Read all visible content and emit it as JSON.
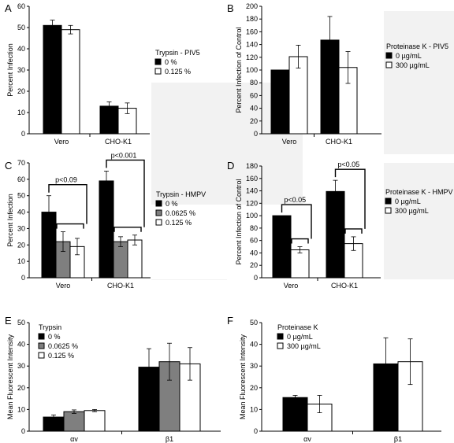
{
  "colors": {
    "black": "#000000",
    "gray": "#7f7f7f",
    "white": "#ffffff",
    "shade": "#f2f2f2"
  },
  "chart_data": [
    {
      "panel": "A",
      "type": "bar",
      "categories": [
        "Vero",
        "CHO-K1"
      ],
      "ylabel": "Percent Infection",
      "ylim": [
        0,
        60
      ],
      "yticks": [
        0,
        10,
        20,
        30,
        40,
        50,
        60
      ],
      "legend_title": "Trypsin - PIV5",
      "series": [
        {
          "name": "0 %",
          "values": [
            51,
            13
          ],
          "errors": [
            2.5,
            2
          ],
          "color": "black"
        },
        {
          "name": "0.125 %",
          "values": [
            49,
            12
          ],
          "errors": [
            2,
            2.5
          ],
          "color": "white"
        }
      ],
      "brackets": []
    },
    {
      "panel": "B",
      "type": "bar",
      "categories": [
        "Vero",
        "CHO-K1"
      ],
      "ylabel": "Percent Infection of Control",
      "ylim": [
        0,
        200
      ],
      "yticks": [
        0,
        20,
        40,
        60,
        80,
        100,
        120,
        140,
        160,
        180,
        200
      ],
      "legend_title": "Proteinase K - PIV5",
      "series": [
        {
          "name": "0 µg/mL",
          "values": [
            100,
            147
          ],
          "errors": [
            0,
            37
          ],
          "color": "black"
        },
        {
          "name": "300 µg/mL",
          "values": [
            121,
            104
          ],
          "errors": [
            18,
            25
          ],
          "color": "white"
        }
      ],
      "brackets": []
    },
    {
      "panel": "C",
      "type": "bar",
      "categories": [
        "Vero",
        "CHO-K1"
      ],
      "ylabel": "Percent Infection",
      "ylim": [
        0,
        70
      ],
      "yticks": [
        0,
        10,
        20,
        30,
        40,
        50,
        60,
        70
      ],
      "legend_title": "Trypsin - HMPV",
      "series": [
        {
          "name": "0 %",
          "values": [
            40,
            59
          ],
          "errors": [
            10,
            6
          ],
          "color": "black"
        },
        {
          "name": "0.0625 %",
          "values": [
            22,
            22
          ],
          "errors": [
            6,
            3
          ],
          "color": "gray"
        },
        {
          "name": "0.125 %",
          "values": [
            19,
            23
          ],
          "errors": [
            5,
            3
          ],
          "color": "white"
        }
      ],
      "brackets": [
        {
          "label": "p<0.09",
          "category": 0
        },
        {
          "label": "p<0.001",
          "category": 1
        }
      ]
    },
    {
      "panel": "D",
      "type": "bar",
      "categories": [
        "Vero",
        "CHO-K1"
      ],
      "ylabel": "Percent Infection of Control",
      "ylim": [
        0,
        180
      ],
      "yticks": [
        0,
        20,
        40,
        60,
        80,
        100,
        120,
        140,
        160,
        180
      ],
      "legend_title": "Proteinase K - HMPV",
      "series": [
        {
          "name": "0 µg/mL",
          "values": [
            100,
            139
          ],
          "errors": [
            0,
            18
          ],
          "color": "black"
        },
        {
          "name": "300 µg/mL",
          "values": [
            45,
            55
          ],
          "errors": [
            5,
            11
          ],
          "color": "white"
        }
      ],
      "brackets": [
        {
          "label": "p<0.05",
          "category": 0
        },
        {
          "label": "p<0.05",
          "category": 1
        }
      ]
    },
    {
      "panel": "E",
      "type": "bar",
      "categories": [
        "αv",
        "β1"
      ],
      "ylabel": "Mean Fluorescent Intensity",
      "ylim": [
        0,
        50
      ],
      "yticks": [
        0,
        10,
        20,
        30,
        40,
        50
      ],
      "legend_title": "Trypsin",
      "series": [
        {
          "name": "0 %",
          "values": [
            6.5,
            29.5
          ],
          "errors": [
            1,
            8.5
          ],
          "color": "black"
        },
        {
          "name": "0.0625 %",
          "values": [
            9,
            32
          ],
          "errors": [
            0.8,
            8.5
          ],
          "color": "gray"
        },
        {
          "name": "0.125 %",
          "values": [
            9.5,
            31
          ],
          "errors": [
            0.5,
            7.5
          ],
          "color": "white"
        }
      ],
      "brackets": []
    },
    {
      "panel": "F",
      "type": "bar",
      "categories": [
        "αv",
        "β1"
      ],
      "ylabel": "Mean Fluorescent Intensity",
      "ylim": [
        0,
        50
      ],
      "yticks": [
        0,
        10,
        20,
        30,
        40,
        50
      ],
      "legend_title": "Proteinase K",
      "series": [
        {
          "name": "0 µg/mL",
          "values": [
            15.5,
            31
          ],
          "errors": [
            1,
            12
          ],
          "color": "black"
        },
        {
          "name": "300 µg/mL",
          "values": [
            12.5,
            32
          ],
          "errors": [
            4,
            10.5
          ],
          "color": "white"
        }
      ],
      "brackets": []
    }
  ]
}
